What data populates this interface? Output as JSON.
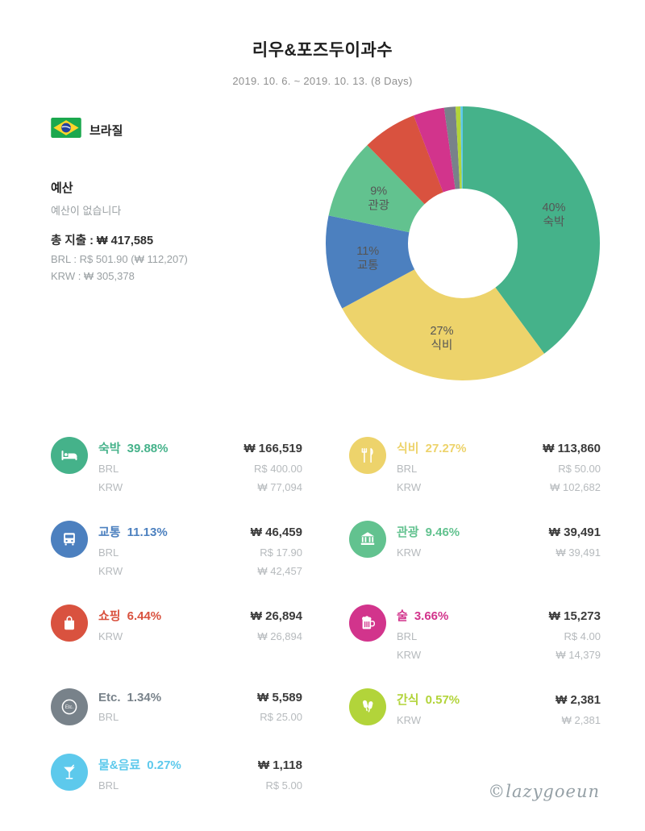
{
  "header": {
    "title": "리우&포즈두이과수",
    "date_range": "2019. 10. 6. ~ 2019. 10. 13. (8 Days)"
  },
  "trip": {
    "country": "브라질",
    "flag_icon": "brazil-flag-icon"
  },
  "budget": {
    "section_label": "예산",
    "empty_message": "예산이 없습니다",
    "total_line": "총 지출 : ₩ 417,585",
    "brl_line": "BRL : R$ 501.90 (₩ 112,207)",
    "krw_line": "KRW : ₩ 305,378"
  },
  "chart_data": {
    "type": "pie",
    "donut": true,
    "direction": "clockwise",
    "start_angle_deg": 0,
    "categories": [
      "숙박",
      "식비",
      "교통",
      "관광",
      "쇼핑",
      "술",
      "Etc.",
      "간식",
      "물&음료"
    ],
    "values": [
      39.88,
      27.27,
      11.13,
      9.46,
      6.44,
      3.66,
      1.34,
      0.57,
      0.27
    ],
    "colors": [
      "#45b28a",
      "#edd36b",
      "#4c80bf",
      "#62c28f",
      "#d9523f",
      "#d2348c",
      "#78828a",
      "#b2d43a",
      "#5dc9ec"
    ],
    "inner_labels": [
      "40%",
      "27%",
      "11%",
      "9%",
      "",
      "",
      "",
      "",
      ""
    ]
  },
  "categories": [
    {
      "title": "숙박",
      "percent": "39.88%",
      "amount": "₩ 166,519",
      "color": "#45b28a",
      "icon": "bed-icon",
      "rows": [
        {
          "code": "BRL",
          "value": "R$ 400.00"
        },
        {
          "code": "KRW",
          "value": "₩ 77,094"
        }
      ]
    },
    {
      "title": "식비",
      "percent": "27.27%",
      "amount": "₩ 113,860",
      "color": "#edd36b",
      "icon": "utensils-icon",
      "rows": [
        {
          "code": "BRL",
          "value": "R$ 50.00"
        },
        {
          "code": "KRW",
          "value": "₩ 102,682"
        }
      ]
    },
    {
      "title": "교통",
      "percent": "11.13%",
      "amount": "₩ 46,459",
      "color": "#4c80bf",
      "icon": "bus-icon",
      "rows": [
        {
          "code": "BRL",
          "value": "R$ 17.90"
        },
        {
          "code": "KRW",
          "value": "₩ 42,457"
        }
      ]
    },
    {
      "title": "관광",
      "percent": "9.46%",
      "amount": "₩ 39,491",
      "color": "#62c28f",
      "icon": "museum-icon",
      "rows": [
        {
          "code": "KRW",
          "value": "₩ 39,491"
        }
      ]
    },
    {
      "title": "쇼핑",
      "percent": "6.44%",
      "amount": "₩ 26,894",
      "color": "#d9523f",
      "icon": "shopping-bag-icon",
      "rows": [
        {
          "code": "KRW",
          "value": "₩ 26,894"
        }
      ]
    },
    {
      "title": "술",
      "percent": "3.66%",
      "amount": "₩ 15,273",
      "color": "#d2348c",
      "icon": "beer-icon",
      "rows": [
        {
          "code": "BRL",
          "value": "R$ 4.00"
        },
        {
          "code": "KRW",
          "value": "₩ 14,379"
        }
      ]
    },
    {
      "title": "Etc.",
      "percent": "1.34%",
      "amount": "₩ 5,589",
      "color": "#78828a",
      "icon": "etc-icon",
      "rows": [
        {
          "code": "BRL",
          "value": "R$ 25.00"
        }
      ]
    },
    {
      "title": "간식",
      "percent": "0.57%",
      "amount": "₩ 2,381",
      "color": "#b2d43a",
      "icon": "snack-icon",
      "rows": [
        {
          "code": "KRW",
          "value": "₩ 2,381"
        }
      ]
    },
    {
      "title": "물&음료",
      "percent": "0.27%",
      "amount": "₩ 1,118",
      "color": "#5dc9ec",
      "icon": "cocktail-icon",
      "rows": [
        {
          "code": "BRL",
          "value": "R$ 5.00"
        }
      ]
    }
  ],
  "watermark": "©lazygoeun"
}
